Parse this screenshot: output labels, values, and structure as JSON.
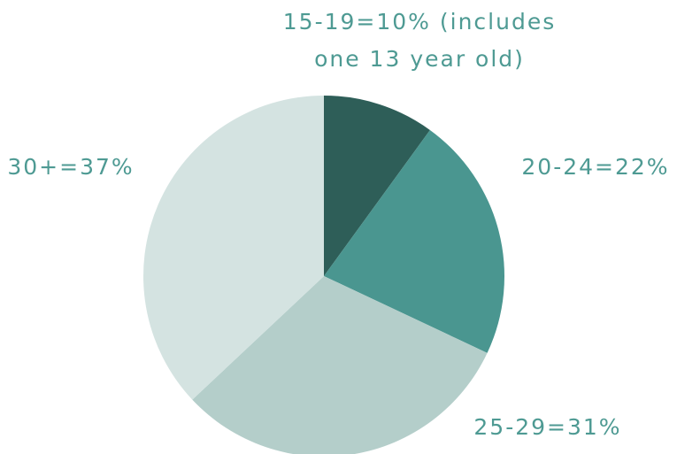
{
  "chart_data": {
    "type": "pie",
    "values": [
      10,
      22,
      31,
      37
    ],
    "value_labels": [
      "15-19=10% (includes one 13 year old)",
      "20-24=22%",
      "25-29=31%",
      "30+=37%"
    ],
    "colors": [
      "#2e5e58",
      "#4a9690",
      "#b4ceca",
      "#d4e3e1"
    ]
  }
}
